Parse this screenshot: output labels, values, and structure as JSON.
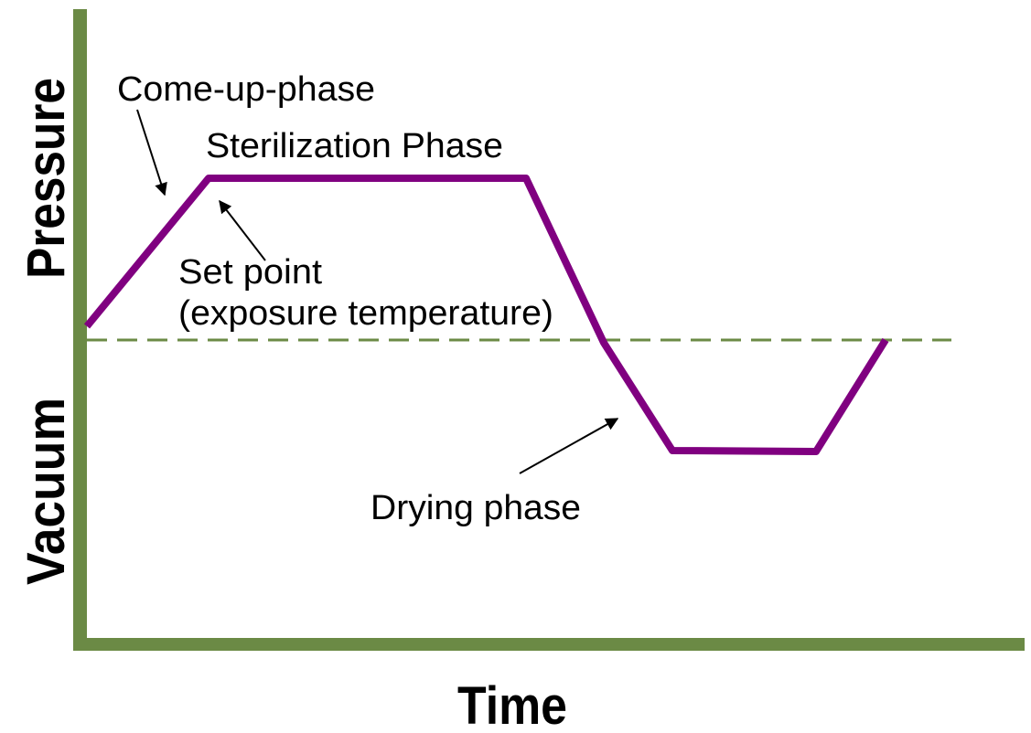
{
  "axes": {
    "y_upper": "Pressure",
    "y_lower": "Vacuum",
    "x": "Time"
  },
  "annotations": {
    "come_up": "Come-up-phase",
    "sterilization": "Sterilization Phase",
    "set_point": "Set point",
    "set_point_detail": "(exposure temperature)",
    "drying": "Drying phase"
  }
}
